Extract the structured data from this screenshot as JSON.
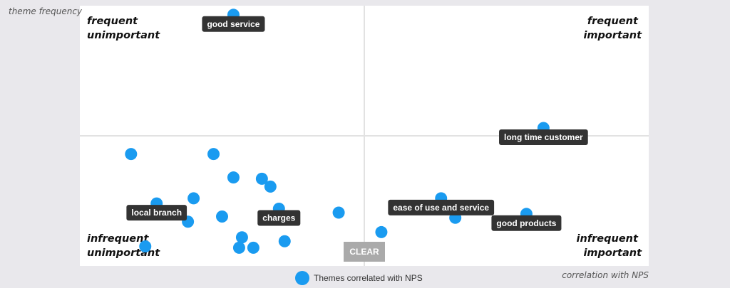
{
  "chart_data": {
    "type": "scatter",
    "xlabel": "correlation with NPS",
    "ylabel": "theme frequency",
    "xlim": [
      -1,
      1
    ],
    "ylim": [
      0,
      1
    ],
    "grid": true,
    "quadrants": {
      "top_left": [
        "frequent",
        "unimportant"
      ],
      "top_right": [
        "frequent",
        "important"
      ],
      "bottom_left": [
        "infrequent",
        "unimportant"
      ],
      "bottom_right": [
        "infrequent",
        "important"
      ]
    },
    "legend": {
      "label": "Themes correlated with NPS",
      "color": "#1a9bf0",
      "position": "bottom"
    },
    "series": [
      {
        "name": "Themes correlated with NPS",
        "points": [
          {
            "x": -0.46,
            "y": 0.965,
            "label": "good service"
          },
          {
            "x": 0.63,
            "y": 0.53,
            "label": "long time customer"
          },
          {
            "x": -0.36,
            "y": 0.335,
            "label": ""
          },
          {
            "x": -0.82,
            "y": 0.43,
            "label": ""
          },
          {
            "x": -0.53,
            "y": 0.43,
            "label": ""
          },
          {
            "x": -0.46,
            "y": 0.34,
            "label": ""
          },
          {
            "x": -0.33,
            "y": 0.305,
            "label": ""
          },
          {
            "x": -0.6,
            "y": 0.26,
            "label": ""
          },
          {
            "x": -0.73,
            "y": 0.24,
            "label": "local branch"
          },
          {
            "x": -0.62,
            "y": 0.17,
            "label": ""
          },
          {
            "x": -0.5,
            "y": 0.19,
            "label": ""
          },
          {
            "x": -0.3,
            "y": 0.22,
            "label": "charges"
          },
          {
            "x": -0.09,
            "y": 0.205,
            "label": ""
          },
          {
            "x": 0.27,
            "y": 0.26,
            "label": "ease of use and service"
          },
          {
            "x": 0.32,
            "y": 0.185,
            "label": ""
          },
          {
            "x": 0.57,
            "y": 0.2,
            "label": "good products"
          },
          {
            "x": 0.06,
            "y": 0.13,
            "label": ""
          },
          {
            "x": -0.43,
            "y": 0.11,
            "label": ""
          },
          {
            "x": -0.28,
            "y": 0.095,
            "label": ""
          },
          {
            "x": -0.44,
            "y": 0.07,
            "label": ""
          },
          {
            "x": -0.39,
            "y": 0.07,
            "label": ""
          },
          {
            "x": -0.77,
            "y": 0.075,
            "label": ""
          }
        ]
      }
    ]
  },
  "controls": {
    "clear_label": "CLEAR"
  }
}
